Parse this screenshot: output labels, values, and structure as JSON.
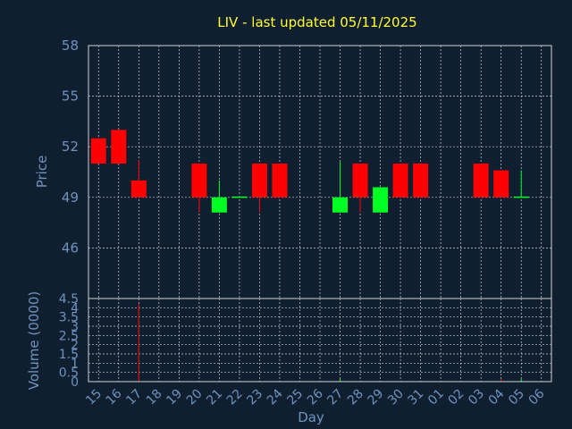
{
  "chart_data": {
    "type": "candlestick",
    "title": "LIV - last updated 05/11/2025",
    "ylabel": "Price",
    "vlabel": "Volume (0000)",
    "xlabel": "Day",
    "ylim": [
      43,
      58
    ],
    "yticks": [
      "58",
      "55",
      "52",
      "49",
      "46"
    ],
    "yticks_values": [
      58,
      55,
      52,
      49,
      46
    ],
    "vlim": [
      0,
      4.5
    ],
    "vticks": [
      "4.5",
      "4",
      "3.5",
      "3",
      "2.5",
      "2",
      "1.5",
      "1",
      "0.5",
      "0"
    ],
    "vticks_values": [
      4.5,
      4,
      3.5,
      3,
      2.5,
      2,
      1.5,
      1,
      0.5,
      0
    ],
    "xticks": [
      "15",
      "16",
      "17",
      "18",
      "19",
      "20",
      "21",
      "22",
      "23",
      "24",
      "25",
      "26",
      "27",
      "28",
      "29",
      "30",
      "31",
      "01",
      "02",
      "03",
      "04",
      "05",
      "06"
    ],
    "grid": true,
    "colors": {
      "up": "#00ff22",
      "down": "#ff0000",
      "title": "#ffff33",
      "axis_text": "#6f93bd",
      "frame": "#d0d0d0",
      "background": "#0f1f30"
    },
    "candles": [
      {
        "day": "15",
        "open": 52.5,
        "close": 51.0,
        "high": 52.5,
        "low": 51.0,
        "volume": 0
      },
      {
        "day": "16",
        "open": 53.0,
        "close": 51.0,
        "high": 53.0,
        "low": 51.0,
        "volume": 0
      },
      {
        "day": "17",
        "open": 50.0,
        "close": 49.0,
        "high": 51.2,
        "low": 49.0,
        "volume": 4.2
      },
      {
        "day": "20",
        "open": 51.0,
        "close": 49.0,
        "high": 51.0,
        "low": 48.1,
        "volume": 0
      },
      {
        "day": "21",
        "open": 48.1,
        "close": 49.0,
        "high": 50.0,
        "low": 48.1,
        "volume": 0
      },
      {
        "day": "22",
        "open": 49.0,
        "close": 49.05,
        "high": 49.05,
        "low": 49.0,
        "volume": 0
      },
      {
        "day": "23",
        "open": 51.0,
        "close": 49.0,
        "high": 51.0,
        "low": 48.1,
        "volume": 0
      },
      {
        "day": "24",
        "open": 51.0,
        "close": 49.0,
        "high": 51.0,
        "low": 49.0,
        "volume": 0
      },
      {
        "day": "27",
        "open": 48.1,
        "close": 49.0,
        "high": 51.1,
        "low": 48.1,
        "volume": 0.15
      },
      {
        "day": "28",
        "open": 51.0,
        "close": 49.0,
        "high": 51.0,
        "low": 48.1,
        "volume": 0
      },
      {
        "day": "29",
        "open": 48.1,
        "close": 49.6,
        "high": 49.6,
        "low": 48.1,
        "volume": 0
      },
      {
        "day": "30",
        "open": 51.0,
        "close": 49.0,
        "high": 51.0,
        "low": 49.0,
        "volume": 0
      },
      {
        "day": "31",
        "open": 51.0,
        "close": 49.0,
        "high": 51.0,
        "low": 49.0,
        "volume": 0
      },
      {
        "day": "03",
        "open": 51.0,
        "close": 49.0,
        "high": 51.0,
        "low": 49.0,
        "volume": 0
      },
      {
        "day": "04",
        "open": 50.6,
        "close": 49.0,
        "high": 50.6,
        "low": 49.0,
        "volume": 0.15
      },
      {
        "day": "05",
        "open": 49.0,
        "close": 49.05,
        "high": 50.6,
        "low": 49.0,
        "volume": 0.15
      }
    ]
  }
}
